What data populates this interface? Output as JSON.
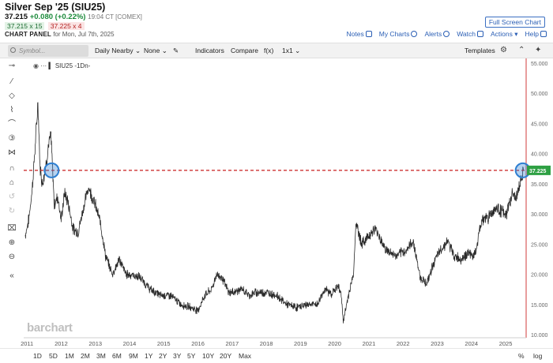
{
  "header": {
    "title": "Silver Sep '25 (SIU25)",
    "last": "37.215",
    "change": "+0.080 (+0.22%)",
    "time": "19:04 CT [COMEX]",
    "bid": "37.215 x 15",
    "ask": "37.225 x 4",
    "panel_label": "CHART PANEL",
    "panel_date": "for Mon, Jul 7th, 2025",
    "full_screen": "Full Screen Chart"
  },
  "toplinks": {
    "notes": "Notes",
    "my_charts": "My Charts",
    "alerts": "Alerts",
    "watch": "Watch",
    "actions": "Actions",
    "help": "Help"
  },
  "toolbar": {
    "symbol_placeholder": "Symbol...",
    "period": "Daily Nearby",
    "none": "None",
    "indicators": "Indicators",
    "compare": "Compare",
    "fx": "f(x)",
    "layout": "1x1",
    "templates": "Templates"
  },
  "legend": {
    "symbol": "SIU25",
    "interval": "-1Dn-"
  },
  "watermark": "barchart",
  "range_buttons": [
    "1D",
    "5D",
    "1M",
    "2M",
    "3M",
    "6M",
    "9M",
    "1Y",
    "2Y",
    "3Y",
    "5Y",
    "10Y",
    "20Y",
    "Max"
  ],
  "scale_buttons": {
    "percent": "%",
    "log": "log"
  },
  "colors": {
    "line": "#2a2a2a",
    "reference_line": "#c81e1e",
    "price_tag": "#2ea043",
    "circle": "#2f7fd1",
    "link": "#2b5fb5"
  },
  "chart_data": {
    "type": "line",
    "x_ticks": [
      "2011",
      "2012",
      "2013",
      "2014",
      "2015",
      "2016",
      "2017",
      "2018",
      "2019",
      "2020",
      "2021",
      "2022",
      "2023",
      "2024",
      "2025"
    ],
    "y_ticks": [
      "10.000",
      "15.000",
      "20.000",
      "25.000",
      "30.000",
      "35.000",
      "37.225",
      "40.000",
      "45.000",
      "50.000",
      "55.000"
    ],
    "ylim": [
      10,
      55
    ],
    "xlim": [
      2010.95,
      2025.6
    ],
    "reference_level": 37.225,
    "current_price_label": "37.225",
    "x": [
      2010.95,
      2011.05,
      2011.15,
      2011.25,
      2011.32,
      2011.38,
      2011.45,
      2011.55,
      2011.62,
      2011.7,
      2011.8,
      2011.9,
      2012.0,
      2012.1,
      2012.2,
      2012.35,
      2012.5,
      2012.65,
      2012.8,
      2013.0,
      2013.15,
      2013.3,
      2013.5,
      2013.7,
      2013.9,
      2014.0,
      2014.3,
      2014.6,
      2014.9,
      2015.2,
      2015.5,
      2015.8,
      2016.0,
      2016.2,
      2016.4,
      2016.55,
      2016.7,
      2016.9,
      2017.0,
      2017.3,
      2017.5,
      2017.7,
      2018.0,
      2018.3,
      2018.6,
      2018.9,
      2019.2,
      2019.5,
      2019.7,
      2019.9,
      2020.1,
      2020.2,
      2020.25,
      2020.4,
      2020.55,
      2020.62,
      2020.8,
      2021.0,
      2021.2,
      2021.5,
      2021.8,
      2022.1,
      2022.3,
      2022.5,
      2022.7,
      2022.9,
      2023.1,
      2023.3,
      2023.5,
      2023.7,
      2023.9,
      2024.1,
      2024.3,
      2024.5,
      2024.7,
      2024.9,
      2025.0,
      2025.2,
      2025.3,
      2025.4,
      2025.52
    ],
    "y": [
      26.5,
      29.0,
      34.0,
      42.0,
      48.5,
      38.0,
      35.0,
      38.0,
      41.0,
      43.0,
      31.5,
      33.0,
      29.0,
      33.5,
      32.0,
      27.5,
      27.0,
      31.0,
      34.5,
      31.5,
      28.5,
      23.0,
      20.0,
      22.5,
      20.0,
      20.0,
      19.5,
      17.5,
      16.5,
      16.5,
      15.0,
      14.5,
      14.0,
      16.5,
      17.5,
      20.0,
      19.5,
      17.0,
      17.0,
      17.5,
      16.5,
      17.0,
      17.0,
      16.5,
      15.0,
      14.5,
      15.0,
      15.0,
      17.5,
      16.8,
      18.0,
      16.5,
      12.0,
      16.5,
      20.0,
      28.5,
      25.0,
      26.5,
      27.5,
      24.0,
      23.0,
      24.0,
      25.5,
      19.5,
      18.5,
      22.0,
      24.0,
      25.5,
      23.0,
      22.5,
      23.5,
      23.0,
      29.0,
      29.5,
      31.0,
      30.5,
      29.5,
      33.5,
      32.5,
      34.5,
      37.2
    ]
  }
}
